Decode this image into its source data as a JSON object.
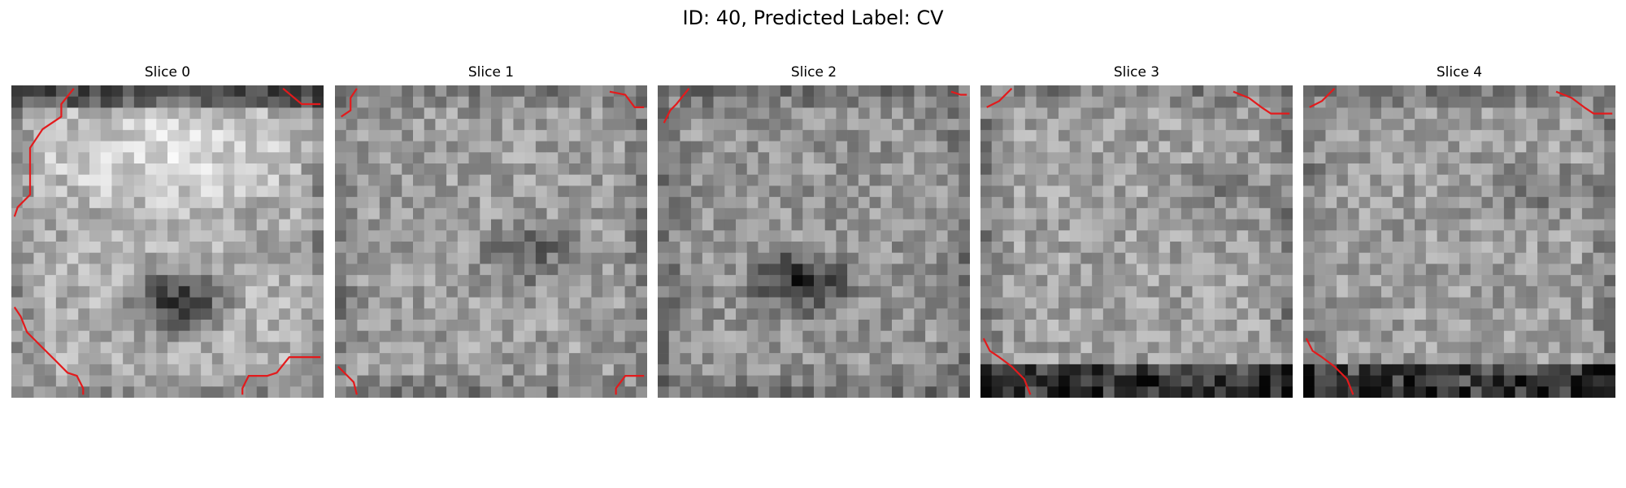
{
  "figure": {
    "title": "ID: 40, Predicted Label: CV"
  },
  "panels": [
    {
      "title": "Slice 0",
      "seed": 11,
      "brightness": 0.68,
      "dark_center": [
        0.53,
        0.7
      ],
      "dark_strength": 0.38,
      "bright_top": true
    },
    {
      "title": "Slice 1",
      "seed": 23,
      "brightness": 0.62,
      "dark_center": [
        0.62,
        0.54
      ],
      "dark_strength": 0.18,
      "bright_top": false
    },
    {
      "title": "Slice 2",
      "seed": 37,
      "brightness": 0.58,
      "dark_center": [
        0.46,
        0.63
      ],
      "dark_strength": 0.3,
      "bright_top": false
    },
    {
      "title": "Slice 3",
      "seed": 41,
      "brightness": 0.63,
      "dark_center": [
        0.78,
        0.34
      ],
      "dark_strength": 0.1,
      "bright_top": false
    },
    {
      "title": "Slice 4",
      "seed": 53,
      "brightness": 0.62,
      "dark_center": [
        0.76,
        0.34
      ],
      "dark_strength": 0.1,
      "bright_top": false
    }
  ],
  "overlay": {
    "contour_color": "#e31a1c"
  }
}
